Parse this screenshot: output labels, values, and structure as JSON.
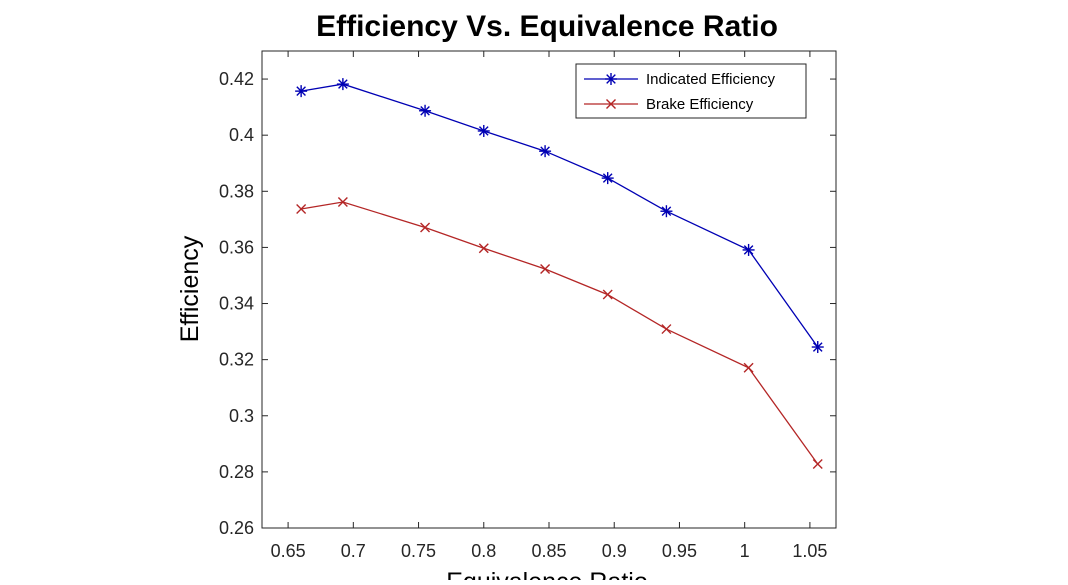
{
  "chart_data": {
    "type": "line",
    "title": "Efficiency Vs. Equivalence Ratio",
    "xlabel": "Equivalence Ratio",
    "ylabel": "Efficiency",
    "xlim": [
      0.63,
      1.07
    ],
    "ylim": [
      0.26,
      0.43
    ],
    "xticks": [
      0.65,
      0.7,
      0.75,
      0.8,
      0.85,
      0.9,
      0.95,
      1,
      1.05
    ],
    "xtick_labels": [
      "0.65",
      "0.7",
      "0.75",
      "0.8",
      "0.85",
      "0.9",
      "0.95",
      "1",
      "1.05"
    ],
    "yticks": [
      0.26,
      0.28,
      0.3,
      0.32,
      0.34,
      0.36,
      0.38,
      0.4,
      0.42
    ],
    "ytick_labels": [
      "0.26",
      "0.28",
      "0.3",
      "0.32",
      "0.34",
      "0.36",
      "0.38",
      "0.4",
      "0.42"
    ],
    "grid": false,
    "legend_position": "top-right",
    "x": [
      0.66,
      0.692,
      0.755,
      0.8,
      0.847,
      0.895,
      0.94,
      1.003,
      1.056
    ],
    "series": [
      {
        "name": "Indicated Efficiency",
        "color": "#0000b4",
        "marker": "asterisk",
        "values": [
          0.4157,
          0.4182,
          0.4087,
          0.4015,
          0.3943,
          0.3847,
          0.3729,
          0.3591,
          0.3245
        ]
      },
      {
        "name": "Brake Efficiency",
        "color": "#b42626",
        "marker": "cross",
        "values": [
          0.3737,
          0.3762,
          0.3671,
          0.3597,
          0.3523,
          0.3432,
          0.3309,
          0.3171,
          0.2828
        ]
      }
    ]
  }
}
